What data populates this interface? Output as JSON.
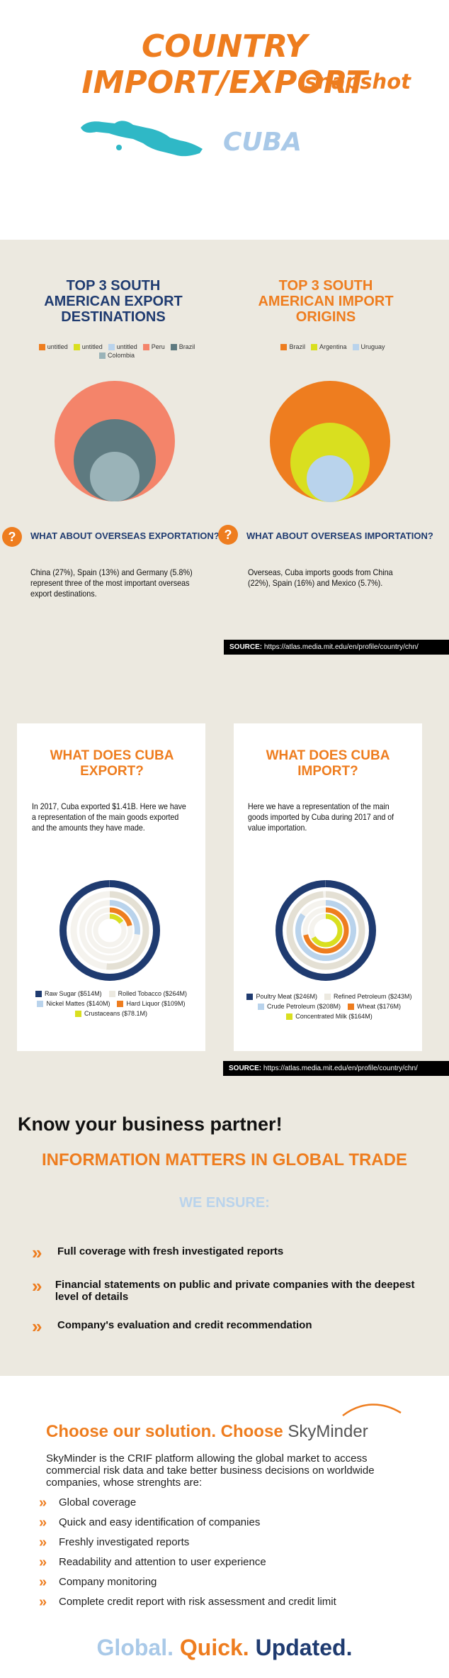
{
  "header": {
    "title": "COUNTRY IMPORT/EXPORT",
    "subtitle": "snapshot",
    "country": "CUBA",
    "map_color": "#2fb8c6"
  },
  "south_america": {
    "export": {
      "title": "TOP 3 SOUTH AMERICAN EXPORT DESTINATIONS",
      "legend": [
        {
          "label": "untitled",
          "color": "#ee7d1f"
        },
        {
          "label": "untitled",
          "color": "#d9df1f"
        },
        {
          "label": "untitled",
          "color": "#b9d3ec"
        },
        {
          "label": "Peru",
          "color": "#f4846a"
        },
        {
          "label": "Brazil",
          "color": "#5e7a80"
        },
        {
          "label": "Colombia",
          "color": "#9ab3b8"
        }
      ]
    },
    "import": {
      "title": "TOP 3 SOUTH AMERICAN IMPORT ORIGINS",
      "legend": [
        {
          "label": "Brazil",
          "color": "#ee7d1f"
        },
        {
          "label": "Argentina",
          "color": "#d9df1f"
        },
        {
          "label": "Uruguay",
          "color": "#b9d3ec"
        }
      ]
    }
  },
  "overseas": {
    "export_heading": "WHAT ABOUT OVERSEAS EXPORTATION?",
    "export_text": "China (27%), Spain (13%) and Germany (5.8%)  represent three of the most important overseas export destinations.",
    "import_heading": "WHAT ABOUT OVERSEAS IMPORTATION?",
    "import_text": "Overseas, Cuba  imports goods from China (22%),  Spain (16%) and Mexico (5.7%).",
    "icon": "question-icon"
  },
  "source": {
    "label": "SOURCE:",
    "url": "https://atlas.media.mit.edu/en/profile/country/chn/"
  },
  "goods": {
    "export": {
      "title": "WHAT DOES CUBA EXPORT?",
      "text": "In 2017, Cuba exported $1.41B. Here we have a representation of the main goods exported and the amounts they have made.",
      "legend": [
        {
          "label": "Raw Sugar ($514M)",
          "color": "#1f3b70",
          "value": 514
        },
        {
          "label": "Rolled Tobacco ($264M)",
          "color": "#ece9e0",
          "value": 264
        },
        {
          "label": "Nickel Mattes ($140M)",
          "color": "#b9d3ec",
          "value": 140
        },
        {
          "label": "Hard Liquor ($109M)",
          "color": "#ee7d1f",
          "value": 109
        },
        {
          "label": "Crustaceans ($78.1M)",
          "color": "#d9df1f",
          "value": 78.1
        }
      ]
    },
    "import": {
      "title": "WHAT DOES CUBA IMPORT?",
      "text": "Here we have a representation of the main goods imported by Cuba during 2017 and of value importation.",
      "legend": [
        {
          "label": "Poultry Meat ($246M)",
          "color": "#1f3b70",
          "value": 246
        },
        {
          "label": "Refined Petroleum ($243M)",
          "color": "#ece9e0",
          "value": 243
        },
        {
          "label": "Crude Petroleum ($208M)",
          "color": "#b9d3ec",
          "value": 208
        },
        {
          "label": "Wheat ($176M)",
          "color": "#ee7d1f",
          "value": 176
        },
        {
          "label": "Concentrated Milk ($164M)",
          "color": "#d9df1f",
          "value": 164
        }
      ]
    }
  },
  "partner": {
    "heading": "Know your business partner!",
    "subheading": "INFORMATION MATTERS IN GLOBAL TRADE",
    "ensure": "WE ENSURE:",
    "bullets": [
      "Full coverage with fresh investigated reports",
      "Financial statements on public and private companies with the deepest level of details",
      "Company's evaluation and credit recommendation"
    ]
  },
  "solution": {
    "choose": "Choose our solution. Choose",
    "brand": "SkyMinder",
    "description": "SkyMinder is the CRIF platform allowing the global market to access commercial risk data and take better business decisions on worldwide companies, whose strenghts are:",
    "features": [
      "Global coverage",
      "Quick and easy identification of companies",
      "Freshly investigated reports",
      "Readability and attention to user experience",
      "Company monitoring",
      "Complete credit report with risk assessment and credit limit"
    ]
  },
  "tagline": {
    "global": "Global.",
    "quick": "Quick.",
    "updated": "Updated.",
    "colors": {
      "global": "#a9c9e8",
      "quick": "#ee7d1f",
      "updated": "#1f3b70"
    }
  }
}
